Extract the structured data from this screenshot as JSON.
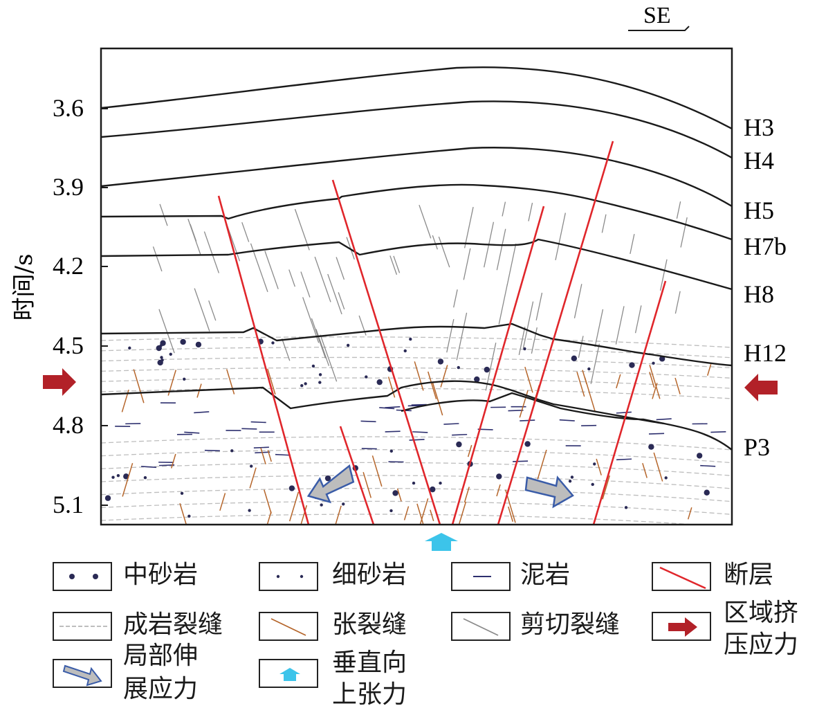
{
  "direction": {
    "label": "SE"
  },
  "axis": {
    "title": "时间/s",
    "ticks": [
      "3.6",
      "3.9",
      "4.2",
      "4.5",
      "4.8",
      "5.1"
    ]
  },
  "horizons": [
    "H3",
    "H4",
    "H5",
    "H7b",
    "H8",
    "H12",
    "P3"
  ],
  "legend": {
    "medium_sandstone": "中砂岩",
    "fine_sandstone": "细砂岩",
    "mudstone": "泥岩",
    "fault": "断层",
    "diagenetic_fracture": "成岩裂缝",
    "tension_fracture": "张裂缝",
    "shear_fracture": "剪切裂缝",
    "regional_compression_line1": "区域挤",
    "regional_compression_line2": "压应力",
    "local_extension_line1": "局部伸",
    "local_extension_line2": "展应力",
    "vertical_tension_line1": "垂直向",
    "vertical_tension_line2": "上张力"
  },
  "colors": {
    "fault": "#e0262b",
    "tension_fracture": "#b5652a",
    "shear_fracture": "#8a8a8a",
    "diagenetic_fracture": "#bdbdbd",
    "mudstone_dash": "#2d2f6e",
    "sand_dot": "#2a2a55",
    "compression_arrow": "#b22128",
    "extension_arrow_fill": "#bdbdbd",
    "extension_arrow_stroke": "#3a5ca8",
    "vertical_arrow": "#3cc4ea",
    "horizon": "#1a1a1a"
  }
}
